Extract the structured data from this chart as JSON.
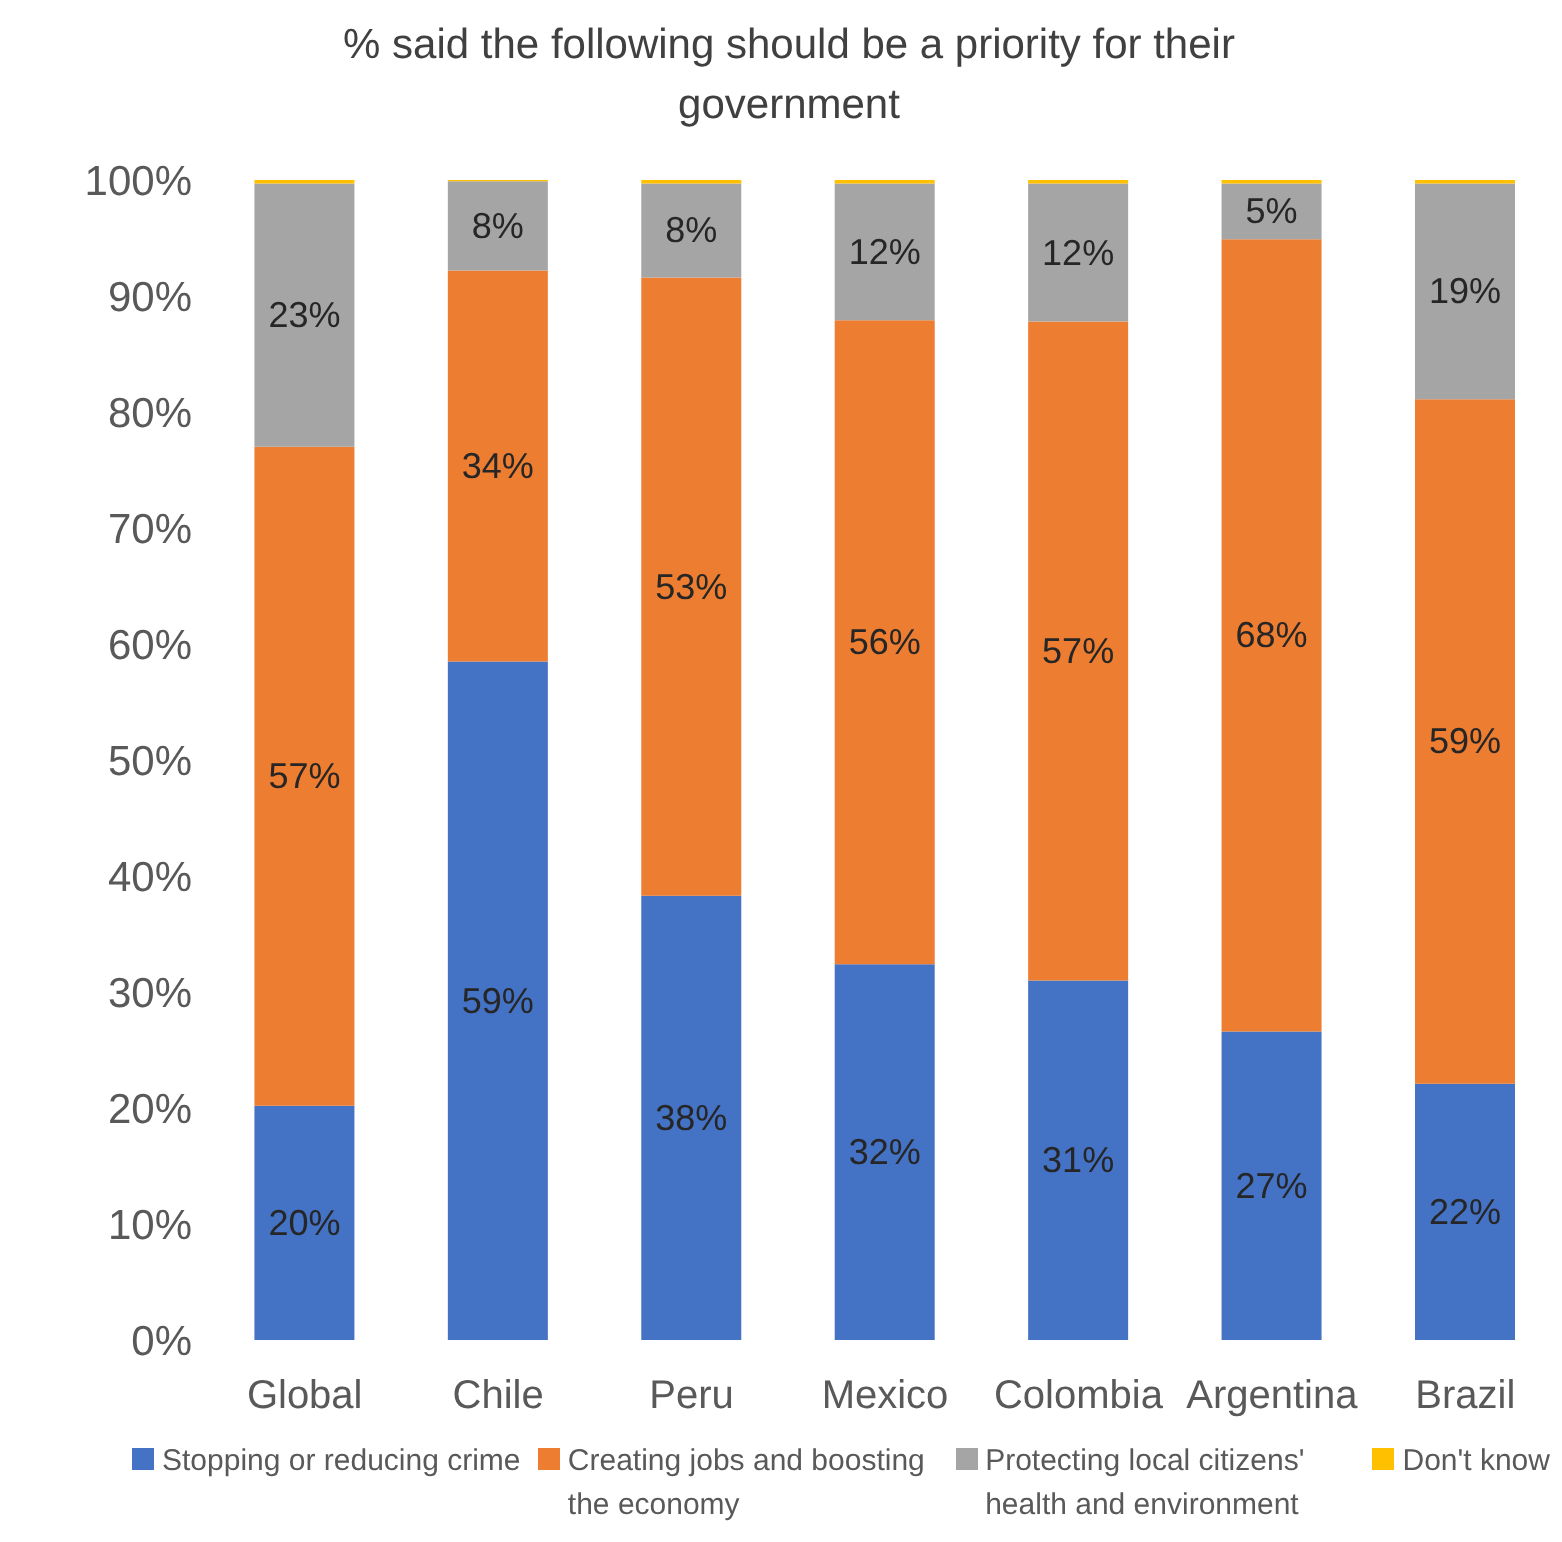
{
  "chart_data": {
    "type": "bar",
    "stacked": true,
    "title": "% said the following should be a priority for their government",
    "categories": [
      "Global",
      "Chile",
      "Peru",
      "Mexico",
      "Colombia",
      "Argentina",
      "Brazil"
    ],
    "series": [
      {
        "name": "Stopping or reducing crime",
        "color": "#4472c4",
        "values": [
          20.2,
          58.5,
          38.3,
          32.4,
          31.0,
          26.6,
          22.1
        ],
        "value_labels": [
          "20%",
          "59%",
          "38%",
          "32%",
          "31%",
          "27%",
          "22%"
        ]
      },
      {
        "name": "Creating jobs and boosting the economy",
        "color": "#ed7d31",
        "values": [
          56.8,
          33.7,
          53.3,
          55.5,
          56.8,
          68.3,
          59.0
        ],
        "value_labels": [
          "57%",
          "34%",
          "53%",
          "56%",
          "57%",
          "68%",
          "59%"
        ]
      },
      {
        "name": "Protecting local citizens' health and environment",
        "color": "#a5a5a5",
        "values": [
          22.7,
          7.7,
          8.1,
          11.8,
          11.9,
          4.8,
          18.6
        ],
        "value_labels": [
          "23%",
          "8%",
          "8%",
          "12%",
          "12%",
          "5%",
          "19%"
        ]
      },
      {
        "name": "Don't know",
        "color": "#ffc000",
        "values": [
          0.3,
          0.3,
          0.3,
          0.3,
          0.3,
          0.3,
          0.3
        ]
      }
    ],
    "ylim": [
      0,
      100
    ],
    "yticks": [
      {
        "value": 0,
        "label": "0%"
      },
      {
        "value": 10,
        "label": "10%"
      },
      {
        "value": 20,
        "label": "20%"
      },
      {
        "value": 30,
        "label": "30%"
      },
      {
        "value": 40,
        "label": "40%"
      },
      {
        "value": 50,
        "label": "50%"
      },
      {
        "value": 60,
        "label": "60%"
      },
      {
        "value": 70,
        "label": "70%"
      },
      {
        "value": 80,
        "label": "80%"
      },
      {
        "value": 90,
        "label": "90%"
      },
      {
        "value": 100,
        "label": "100%"
      }
    ],
    "grid": false,
    "legend": "bottom"
  }
}
